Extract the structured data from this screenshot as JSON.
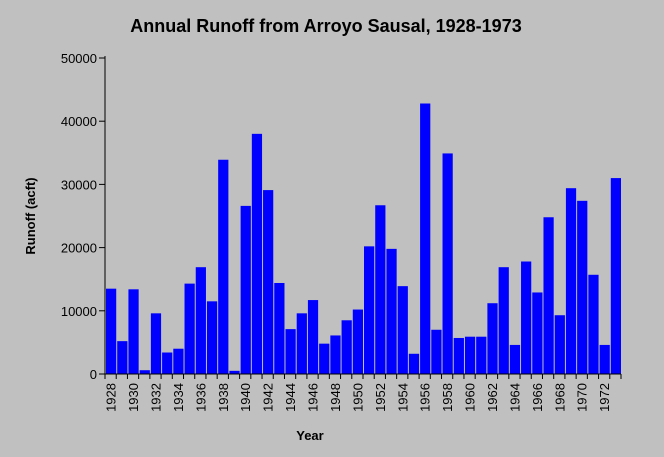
{
  "chart_data": {
    "type": "bar",
    "title": "Annual Runoff from Arroyo Sausal, 1928-1973",
    "xlabel": "Year",
    "ylabel": "Runoff (acft)",
    "ylim": [
      0,
      50000
    ],
    "yticks": [
      0,
      10000,
      20000,
      30000,
      40000,
      50000
    ],
    "xtick_labels": [
      "1928",
      "1930",
      "1932",
      "1934",
      "1936",
      "1938",
      "1940",
      "1942",
      "1944",
      "1946",
      "1948",
      "1950",
      "1952",
      "1954",
      "1956",
      "1958",
      "1960",
      "1962",
      "1964",
      "1966",
      "1968",
      "1970",
      "1972"
    ],
    "categories": [
      "1928",
      "1929",
      "1930",
      "1931",
      "1932",
      "1933",
      "1934",
      "1935",
      "1936",
      "1937",
      "1938",
      "1939",
      "1940",
      "1941",
      "1942",
      "1943",
      "1944",
      "1945",
      "1946",
      "1947",
      "1948",
      "1949",
      "1950",
      "1951",
      "1952",
      "1953",
      "1954",
      "1955",
      "1956",
      "1957",
      "1958",
      "1959",
      "1960",
      "1961",
      "1962",
      "1963",
      "1964",
      "1965",
      "1966",
      "1967",
      "1968",
      "1969",
      "1970",
      "1971",
      "1972",
      "1973"
    ],
    "values": [
      13500,
      5200,
      13400,
      600,
      9600,
      3400,
      4000,
      14300,
      16900,
      11500,
      33900,
      500,
      26600,
      38000,
      29100,
      14400,
      7100,
      9600,
      11700,
      4800,
      6100,
      8500,
      10200,
      20200,
      26700,
      19800,
      13900,
      3200,
      42800,
      7000,
      34900,
      5700,
      5900,
      5900,
      11200,
      16900,
      4600,
      17800,
      12900,
      24800,
      9300,
      29400,
      27400,
      15700,
      4600,
      31000
    ],
    "bar_color": "#0000ff",
    "background_color": "#c0c0c0",
    "grid": false
  }
}
